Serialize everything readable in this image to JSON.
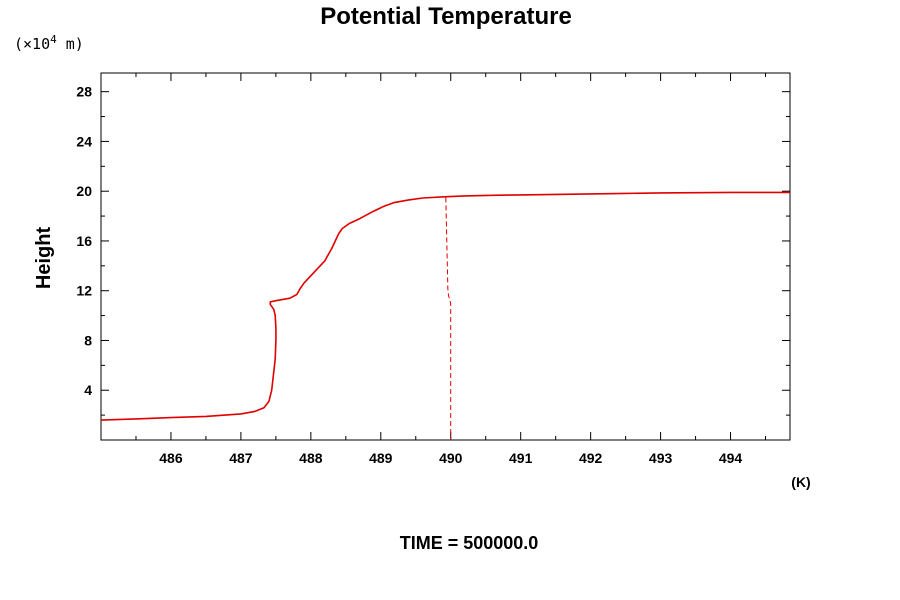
{
  "chart_data": {
    "type": "line",
    "title": "Potential Temperature",
    "ylabel": "Height",
    "y_unit_prefix": "(×10",
    "y_unit_exponent": "4",
    "y_unit_suffix": " m)",
    "x_unit": "(K)",
    "footer": "TIME = 500000.0",
    "xlim": [
      485.0,
      494.85
    ],
    "ylim": [
      0.0,
      29.5
    ],
    "x_ticks": [
      486,
      487,
      488,
      489,
      490,
      491,
      492,
      493,
      494
    ],
    "x_tick_labels": [
      "486",
      "487",
      "488",
      "489",
      "490",
      "491",
      "492",
      "493",
      "494"
    ],
    "y_ticks": [
      4,
      8,
      12,
      16,
      20,
      24,
      28
    ],
    "y_tick_labels": [
      "4",
      "8",
      "12",
      "16",
      "20",
      "24",
      "28"
    ],
    "x_minor_step": 0.5,
    "y_minor_step": 2,
    "grid": false,
    "legend": "none",
    "series": [
      {
        "style": "solid",
        "color": "#e00000",
        "x": [
          485.0,
          485.5,
          486.0,
          486.5,
          487.0,
          487.2,
          487.33,
          487.4,
          487.44,
          487.47,
          487.49,
          487.5,
          487.5,
          487.49,
          487.47,
          487.42,
          487.42,
          487.5,
          487.7,
          487.8,
          487.85,
          487.9,
          488.0,
          488.1,
          488.2,
          488.3,
          488.35,
          488.4,
          488.45,
          488.55,
          488.7,
          488.9,
          489.05,
          489.2,
          489.4,
          489.6,
          489.9,
          490.2,
          490.6,
          491.0,
          491.5,
          492.0,
          492.5,
          493.0,
          493.5,
          494.0,
          494.5,
          494.85
        ],
        "y": [
          1.6,
          1.7,
          1.8,
          1.9,
          2.1,
          2.3,
          2.6,
          3.1,
          4.0,
          5.5,
          6.5,
          8.0,
          9.0,
          10.0,
          10.5,
          10.9,
          11.1,
          11.2,
          11.4,
          11.7,
          12.2,
          12.6,
          13.2,
          13.8,
          14.4,
          15.4,
          16.0,
          16.6,
          17.0,
          17.4,
          17.8,
          18.4,
          18.8,
          19.1,
          19.3,
          19.45,
          19.55,
          19.62,
          19.67,
          19.7,
          19.74,
          19.78,
          19.82,
          19.86,
          19.88,
          19.9,
          19.9,
          19.9
        ]
      },
      {
        "style": "dashed",
        "color": "#e00000",
        "x": [
          489.93,
          489.96,
          489.97,
          490.0,
          490.0,
          490.0
        ],
        "y": [
          19.5,
          12.0,
          11.6,
          11.0,
          2.0,
          0.0
        ]
      }
    ]
  }
}
